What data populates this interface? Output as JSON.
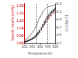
{
  "chart_data": {
    "type": "line",
    "xlabel": "Temperature [K]",
    "ylabel": "Specific volume [cm³/g]",
    "y2label": "Cv [J/(g K)]",
    "xlim": [
      100,
      500
    ],
    "ylim": [
      0.88,
      1.3
    ],
    "y2lim": [
      0.3,
      1.3
    ],
    "xticks": [
      100,
      200,
      300,
      400,
      500
    ],
    "yticks": [
      0.88,
      0.96,
      1.04,
      1.12,
      {
        "value": 1.2,
        "label": "1.20"
      },
      1.28
    ],
    "y2ticks": [
      0.3,
      0.5,
      0.7,
      0.9,
      1.1,
      1.3
    ],
    "grid": false,
    "vlines": {
      "x": [
        248,
        390
      ],
      "color": "#444444",
      "line_style": "dashed"
    },
    "series": [
      {
        "type": "scatter",
        "marker": "square",
        "color": "#222222",
        "x": [
          105,
          120,
          140,
          160,
          180,
          200,
          220,
          240,
          258,
          275,
          295,
          318,
          338,
          358,
          375,
          395,
          415,
          435,
          455,
          475,
          495
        ],
        "values": [
          0.893,
          0.897,
          0.903,
          0.91,
          0.918,
          0.927,
          0.937,
          0.95,
          0.965,
          0.983,
          1.005,
          1.032,
          1.062,
          1.092,
          1.118,
          1.148,
          1.168,
          1.188,
          1.205,
          1.222,
          1.24
        ],
        "errors": [
          0.005,
          0.005,
          0.005,
          0.005,
          0.006,
          0.006,
          0.007,
          0.008,
          0.01,
          0.012,
          0.014,
          0.015,
          0.016,
          0.017,
          0.017,
          0.017,
          0.015,
          0.014,
          0.013,
          0.013,
          0.013
        ]
      },
      {
        "type": "line",
        "line_style": "dashed",
        "color": "#cc1111",
        "x": [
          100,
          115,
          130,
          145,
          160,
          175,
          190,
          205,
          220,
          235,
          250,
          265,
          280,
          295,
          310,
          325,
          340,
          355,
          370,
          385,
          400,
          415,
          430,
          445,
          460,
          475,
          490,
          500
        ],
        "values": [
          0.891,
          0.896,
          0.9,
          0.905,
          0.91,
          0.916,
          0.923,
          0.93,
          0.939,
          0.949,
          0.961,
          0.975,
          0.99,
          1.006,
          1.024,
          1.041,
          1.059,
          1.076,
          1.093,
          1.109,
          1.124,
          1.14,
          1.155,
          1.168,
          1.18,
          1.192,
          1.204,
          1.212
        ]
      },
      {
        "type": "line",
        "line_style": "solid",
        "color": "#666666",
        "axis": "y2",
        "x": [
          100,
          115,
          130,
          145,
          160,
          175,
          190,
          205,
          220,
          235,
          250,
          265,
          280,
          295,
          310,
          325,
          340,
          355,
          370,
          385,
          400,
          415,
          430,
          445,
          460,
          475,
          490,
          500
        ],
        "values": [
          0.37,
          0.39,
          0.41,
          0.44,
          0.47,
          0.5,
          0.54,
          0.58,
          0.62,
          0.67,
          0.73,
          0.8,
          0.87,
          0.93,
          0.99,
          1.04,
          1.09,
          1.13,
          1.16,
          1.19,
          1.21,
          1.22,
          1.23,
          1.235,
          1.24,
          1.245,
          1.248,
          1.25
        ]
      }
    ]
  }
}
